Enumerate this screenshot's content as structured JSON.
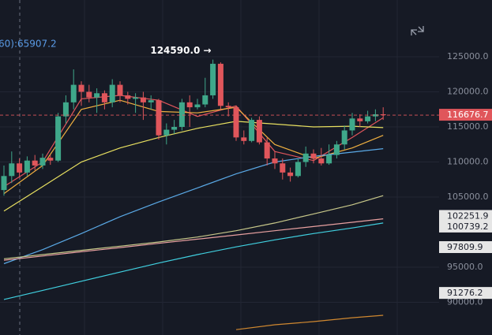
{
  "chart_data": {
    "type": "candlestick",
    "legend_text": "60):65907.2",
    "annotation": "124590.0 →",
    "annotation_index": 27,
    "categories": [
      null,
      null,
      null,
      null,
      null,
      null,
      null,
      null,
      null,
      null,
      null,
      null,
      null,
      null,
      null,
      null,
      null,
      null,
      null,
      null,
      null,
      null,
      null,
      null,
      null,
      null,
      null,
      null,
      null,
      null,
      null,
      null,
      null,
      null,
      null,
      null,
      null,
      null,
      null,
      null,
      null,
      null,
      null,
      null,
      null,
      null,
      null,
      null,
      null,
      null
    ],
    "open": [
      106000,
      108000,
      109800,
      108500,
      110200,
      109500,
      110600,
      110200,
      116500,
      118500,
      121000,
      120000,
      119200,
      119800,
      118500,
      121000,
      119500,
      119000,
      119200,
      118500,
      118800,
      113800,
      114600,
      115000,
      118500,
      117800,
      118200,
      119500,
      124000,
      118000,
      117800,
      113500,
      113000,
      116000,
      112800,
      110500,
      109800,
      108500,
      108000,
      110000,
      111200,
      110500,
      109800,
      111000,
      112500,
      114500,
      116200,
      115800,
      116500,
      116800
    ],
    "high": [
      109500,
      111500,
      110500,
      110800,
      111000,
      111200,
      111000,
      117000,
      119500,
      123200,
      121500,
      121000,
      120500,
      120200,
      121800,
      121500,
      120000,
      119800,
      120000,
      119500,
      119000,
      115500,
      116000,
      119000,
      119500,
      119000,
      122000,
      124590,
      124200,
      118500,
      118000,
      114500,
      116300,
      116500,
      113500,
      111500,
      110500,
      109200,
      110500,
      112200,
      111800,
      112000,
      112500,
      113000,
      115200,
      117000,
      116800,
      117300,
      117500,
      117800
    ],
    "low": [
      105200,
      107000,
      107800,
      108000,
      108800,
      109000,
      109600,
      110000,
      115500,
      117500,
      118000,
      118500,
      117000,
      117500,
      117800,
      118500,
      118200,
      117000,
      116000,
      117500,
      113200,
      112500,
      114000,
      114500,
      115000,
      117500,
      117800,
      119000,
      117500,
      116500,
      113000,
      112500,
      112800,
      112500,
      109500,
      109000,
      107500,
      107200,
      107800,
      109300,
      109800,
      109500,
      109600,
      110500,
      111800,
      113800,
      115000,
      115500,
      115800,
      116000
    ],
    "close": [
      108000,
      109800,
      108500,
      110200,
      109500,
      110600,
      110200,
      116500,
      118500,
      121000,
      120000,
      119200,
      119800,
      118500,
      121000,
      119500,
      119000,
      119200,
      118500,
      118800,
      113800,
      114600,
      115000,
      118500,
      117800,
      118200,
      119500,
      124000,
      118000,
      117800,
      113500,
      113000,
      116000,
      112800,
      110500,
      109800,
      108500,
      108000,
      110000,
      111200,
      110500,
      109800,
      111000,
      112500,
      114500,
      116200,
      115800,
      116500,
      116800,
      116676.7
    ],
    "up_color": "#3fa88a",
    "down_color": "#e0565b",
    "series": [
      {
        "color": "#e0565b",
        "x": [
          0,
          5,
          10,
          15,
          20,
          25,
          30,
          35,
          40,
          45,
          49
        ],
        "values": [
          106500,
          110000,
          119000,
          119500,
          118800,
          116500,
          118000,
          111500,
          110200,
          113500,
          116300
        ]
      },
      {
        "color": "#f0b040",
        "x": [
          0,
          5,
          10,
          15,
          20,
          25,
          30,
          35,
          40,
          45,
          49
        ],
        "values": [
          105500,
          109500,
          117500,
          118800,
          117200,
          117000,
          117800,
          112500,
          110500,
          112000,
          113800
        ]
      },
      {
        "color": "#e8e060",
        "x": [
          0,
          5,
          10,
          15,
          20,
          25,
          30,
          35,
          40,
          45,
          49
        ],
        "values": [
          103000,
          106500,
          110000,
          112000,
          113500,
          114800,
          115800,
          115400,
          115000,
          115100,
          114900
        ]
      },
      {
        "color": "#5aa9e6",
        "x": [
          0,
          5,
          10,
          15,
          20,
          25,
          30,
          35,
          40,
          45,
          49
        ],
        "values": [
          95500,
          97500,
          99800,
          102200,
          104300,
          106300,
          108300,
          110000,
          110800,
          111400,
          111900
        ]
      },
      {
        "color": "#c8c88a",
        "x": [
          0,
          5,
          10,
          15,
          20,
          25,
          30,
          35,
          40,
          45,
          49
        ],
        "values": [
          96200,
          96800,
          97400,
          98000,
          98600,
          99300,
          100200,
          101300,
          102600,
          103900,
          105200
        ]
      },
      {
        "color": "#e8a0a0",
        "x": [
          0,
          5,
          10,
          15,
          20,
          25,
          30,
          35,
          40,
          45,
          49
        ],
        "values": [
          96000,
          96600,
          97200,
          97800,
          98400,
          99000,
          99600,
          100200,
          100800,
          101400,
          101900
        ]
      },
      {
        "color": "#40d0e0",
        "x": [
          0,
          5,
          10,
          15,
          20,
          25,
          30,
          35,
          40,
          45,
          49
        ],
        "values": [
          90400,
          91700,
          93000,
          94300,
          95600,
          96800,
          97900,
          98900,
          99800,
          100600,
          101300
        ]
      },
      {
        "color": "#d08830",
        "x": [
          0,
          5,
          10,
          15,
          20,
          25,
          30,
          35,
          40,
          45,
          49
        ],
        "values": [
          null,
          null,
          null,
          null,
          null,
          null,
          86100,
          86800,
          87250,
          87800,
          88150
        ]
      }
    ],
    "price_labels": [
      {
        "value": 116676.7,
        "color": "#e0565b"
      },
      {
        "value": 102251.9,
        "color": "#e6e6e6"
      },
      {
        "value": 100739.2,
        "color": "#e6e6e6"
      },
      {
        "value": 97809.9,
        "color": "#e6e6e6"
      },
      {
        "value": 91276.2,
        "color": "#e6e6e6"
      }
    ],
    "ylim": [
      85337,
      133090
    ],
    "yticks": [
      {
        "value": 90000,
        "label": "90000.0"
      },
      {
        "value": 95000,
        "label": "95000.0"
      },
      {
        "value": 105000,
        "label": "105000.0"
      },
      {
        "value": 110000,
        "label": "110000.0"
      },
      {
        "value": 115000,
        "label": "115000.0"
      },
      {
        "value": 120000,
        "label": "120000.0"
      },
      {
        "value": 125000,
        "label": "125000.0"
      }
    ],
    "grid": true
  }
}
